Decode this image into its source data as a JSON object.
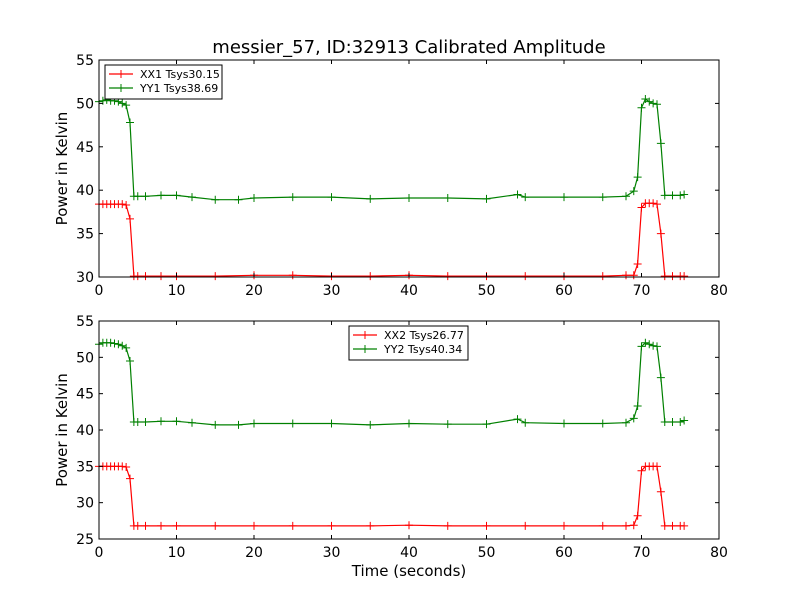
{
  "chart_data": [
    {
      "type": "line",
      "title": "messier_57, ID:32913 Calibrated Amplitude",
      "xlabel": "",
      "ylabel": "Power in Kelvin",
      "xlim": [
        0,
        80
      ],
      "ylim": [
        30,
        55
      ],
      "xticks": [
        0,
        10,
        20,
        30,
        40,
        50,
        60,
        70,
        80
      ],
      "yticks": [
        30,
        35,
        40,
        45,
        50,
        55
      ],
      "grid": false,
      "legend_position": "top-left",
      "series": [
        {
          "name": "XX1 Tsys30.15",
          "color": "#ff0000",
          "x": [
            0,
            0.5,
            1,
            1.5,
            2,
            2.5,
            3,
            3.5,
            4,
            4.5,
            5,
            6,
            8,
            10,
            15,
            20,
            25,
            30,
            35,
            40,
            45,
            50,
            55,
            60,
            65,
            68,
            69,
            69.5,
            70,
            70.5,
            71,
            71.5,
            72,
            72.5,
            73,
            74,
            75,
            75.5
          ],
          "y": [
            38.4,
            38.4,
            38.4,
            38.4,
            38.4,
            38.4,
            38.4,
            38.3,
            36.7,
            30.1,
            30.1,
            30.1,
            30.1,
            30.1,
            30.1,
            30.2,
            30.2,
            30.1,
            30.1,
            30.2,
            30.1,
            30.1,
            30.1,
            30.1,
            30.1,
            30.2,
            30.2,
            31.5,
            38.0,
            38.5,
            38.5,
            38.5,
            38.4,
            35.0,
            30.1,
            30.1,
            30.1,
            30.1
          ]
        },
        {
          "name": "YY1 Tsys38.69",
          "color": "#008000",
          "x": [
            0,
            0.5,
            1,
            1.5,
            2,
            2.5,
            3,
            3.5,
            4,
            4.5,
            5,
            6,
            8,
            10,
            12,
            15,
            18,
            20,
            25,
            30,
            35,
            40,
            45,
            50,
            54,
            55,
            60,
            65,
            68,
            69,
            69.5,
            70,
            70.5,
            71,
            71.5,
            72,
            72.5,
            73,
            74,
            75,
            75.5
          ],
          "y": [
            50.2,
            50.3,
            50.4,
            50.3,
            50.3,
            50.2,
            50.0,
            49.8,
            47.8,
            39.3,
            39.3,
            39.3,
            39.4,
            39.4,
            39.2,
            38.9,
            38.9,
            39.1,
            39.2,
            39.2,
            39.0,
            39.1,
            39.1,
            39.0,
            39.5,
            39.2,
            39.2,
            39.2,
            39.3,
            39.9,
            41.5,
            49.5,
            50.5,
            50.2,
            50.0,
            49.9,
            45.4,
            39.4,
            39.4,
            39.4,
            39.5
          ]
        }
      ]
    },
    {
      "type": "line",
      "title": "",
      "xlabel": "Time (seconds)",
      "ylabel": "Power in Kelvin",
      "xlim": [
        0,
        80
      ],
      "ylim": [
        25,
        55
      ],
      "xticks": [
        0,
        10,
        20,
        30,
        40,
        50,
        60,
        70,
        80
      ],
      "yticks": [
        25,
        30,
        35,
        40,
        45,
        50,
        55
      ],
      "grid": false,
      "legend_position": "top-center",
      "series": [
        {
          "name": "XX2 Tsys26.77",
          "color": "#ff0000",
          "x": [
            0,
            0.5,
            1,
            1.5,
            2,
            2.5,
            3,
            3.5,
            4,
            4.5,
            5,
            6,
            8,
            10,
            15,
            20,
            25,
            30,
            35,
            40,
            45,
            50,
            55,
            60,
            65,
            68,
            69,
            69.5,
            70,
            70.5,
            71,
            71.5,
            72,
            72.5,
            73,
            74,
            75,
            75.5
          ],
          "y": [
            35.0,
            35.0,
            35.0,
            35.0,
            35.0,
            35.0,
            35.0,
            34.9,
            33.3,
            26.8,
            26.8,
            26.8,
            26.8,
            26.8,
            26.8,
            26.8,
            26.8,
            26.8,
            26.8,
            26.9,
            26.8,
            26.8,
            26.8,
            26.8,
            26.8,
            26.8,
            26.9,
            28.2,
            34.4,
            35.0,
            35.0,
            35.0,
            35.0,
            31.5,
            26.8,
            26.8,
            26.8,
            26.8
          ]
        },
        {
          "name": "YY2 Tsys40.34",
          "color": "#008000",
          "x": [
            0,
            0.5,
            1,
            1.5,
            2,
            2.5,
            3,
            3.5,
            4,
            4.5,
            5,
            6,
            8,
            10,
            12,
            15,
            18,
            20,
            25,
            30,
            35,
            40,
            45,
            50,
            54,
            55,
            60,
            65,
            68,
            69,
            69.5,
            70,
            70.5,
            71,
            71.5,
            72,
            72.5,
            73,
            74,
            75,
            75.5
          ],
          "y": [
            51.8,
            52.0,
            52.0,
            52.0,
            51.9,
            51.8,
            51.6,
            51.3,
            49.5,
            41.1,
            41.1,
            41.1,
            41.2,
            41.2,
            41.0,
            40.7,
            40.7,
            40.9,
            40.9,
            40.9,
            40.7,
            40.9,
            40.8,
            40.8,
            41.5,
            41.0,
            40.9,
            40.9,
            41.0,
            41.6,
            43.3,
            51.5,
            52.0,
            51.8,
            51.6,
            51.5,
            47.2,
            41.1,
            41.1,
            41.1,
            41.3
          ]
        }
      ]
    }
  ]
}
